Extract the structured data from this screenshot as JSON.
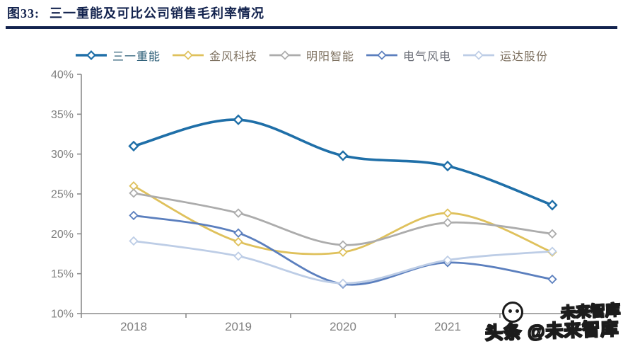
{
  "header": {
    "figure_label": "图33:",
    "title": "三一重能及可比公司销售毛利率情况"
  },
  "colors": {
    "title_navy": "#13234e",
    "axis_line": "#8c8c8c",
    "axis_text": "#7f7f7f"
  },
  "legend": {
    "items": [
      {
        "label": "三一重能",
        "color": "#1f6fa8",
        "label_color": "#2e5f78"
      },
      {
        "label": "金风科技",
        "color": "#dfc15c",
        "label_color": "#7d705f"
      },
      {
        "label": "明阳智能",
        "color": "#acacac",
        "label_color": "#7d705f"
      },
      {
        "label": "电气风电",
        "color": "#5b7fbe",
        "label_color": "#6b6e77"
      },
      {
        "label": "运达股份",
        "color": "#bdcde6",
        "label_color": "#7d705f"
      }
    ]
  },
  "chart_data": {
    "type": "line",
    "title": "三一重能及可比公司销售毛利率情况",
    "categories": [
      "2018",
      "2019",
      "2020",
      "2021",
      ""
    ],
    "series": [
      {
        "name": "三一重能",
        "color": "#1f6fa8",
        "values": [
          31.0,
          34.3,
          29.8,
          28.5,
          23.6
        ]
      },
      {
        "name": "金风科技",
        "color": "#dfc15c",
        "values": [
          26.0,
          19.0,
          17.7,
          22.6,
          17.7
        ]
      },
      {
        "name": "明阳智能",
        "color": "#acacac",
        "values": [
          25.1,
          22.6,
          18.6,
          21.4,
          20.0
        ]
      },
      {
        "name": "电气风电",
        "color": "#5b7fbe",
        "values": [
          22.3,
          20.1,
          13.7,
          16.4,
          14.3
        ]
      },
      {
        "name": "运达股份",
        "color": "#bdcde6",
        "values": [
          19.1,
          17.2,
          13.8,
          16.7,
          17.8
        ]
      }
    ],
    "ylim": [
      10,
      40
    ],
    "y_tick_step": 5,
    "y_ticks": [
      "40%",
      "35%",
      "30%",
      "25%",
      "20%",
      "15%",
      "10%"
    ],
    "xlabel": "",
    "ylabel": "",
    "grid": false,
    "legend_position": "top",
    "marker": "diamond-hollow",
    "smooth": true
  },
  "watermark": {
    "brand": "头条",
    "handle": "@未来智库",
    "echo": "未来智库"
  }
}
